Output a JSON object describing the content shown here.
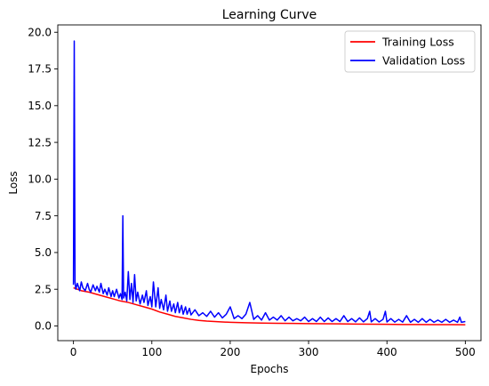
{
  "chart_data": {
    "type": "line",
    "title": "Learning Curve",
    "xlabel": "Epochs",
    "ylabel": "Loss",
    "xlim": [
      -20,
      520
    ],
    "ylim": [
      -1.0,
      20.5
    ],
    "xticks": [
      0,
      100,
      200,
      300,
      400,
      500
    ],
    "xtick_labels": [
      "0",
      "100",
      "200",
      "300",
      "400",
      "500"
    ],
    "yticks": [
      0.0,
      2.5,
      5.0,
      7.5,
      10.0,
      12.5,
      15.0,
      17.5,
      20.0
    ],
    "ytick_labels": [
      "0.0",
      "2.5",
      "5.0",
      "7.5",
      "10.0",
      "12.5",
      "15.0",
      "17.5",
      "20.0"
    ],
    "grid": false,
    "legend_position": "top-right",
    "series": [
      {
        "name": "Training Loss",
        "color": "#ff0000",
        "x": [
          0,
          10,
          20,
          30,
          40,
          50,
          60,
          70,
          80,
          90,
          100,
          110,
          120,
          130,
          140,
          150,
          160,
          170,
          180,
          190,
          200,
          220,
          240,
          260,
          280,
          300,
          320,
          340,
          360,
          380,
          400,
          420,
          440,
          460,
          480,
          500
        ],
        "y": [
          2.6,
          2.4,
          2.3,
          2.15,
          2.0,
          1.85,
          1.7,
          1.6,
          1.45,
          1.3,
          1.15,
          0.95,
          0.8,
          0.65,
          0.55,
          0.45,
          0.38,
          0.33,
          0.3,
          0.27,
          0.25,
          0.22,
          0.2,
          0.18,
          0.17,
          0.16,
          0.15,
          0.14,
          0.13,
          0.12,
          0.11,
          0.1,
          0.1,
          0.09,
          0.09,
          0.08
        ]
      },
      {
        "name": "Validation Loss",
        "color": "#0000ff",
        "x": [
          0,
          1,
          2,
          3,
          5,
          8,
          10,
          12,
          15,
          18,
          20,
          22,
          25,
          28,
          30,
          33,
          35,
          38,
          40,
          43,
          45,
          48,
          50,
          52,
          55,
          58,
          60,
          62,
          63,
          64,
          66,
          68,
          70,
          72,
          74,
          76,
          78,
          80,
          82,
          85,
          88,
          90,
          93,
          95,
          98,
          100,
          102,
          105,
          108,
          110,
          112,
          115,
          118,
          120,
          123,
          125,
          128,
          130,
          133,
          135,
          138,
          140,
          143,
          145,
          148,
          150,
          155,
          160,
          165,
          170,
          175,
          180,
          185,
          190,
          195,
          200,
          205,
          210,
          215,
          220,
          225,
          230,
          235,
          240,
          245,
          250,
          255,
          260,
          265,
          270,
          275,
          280,
          285,
          290,
          295,
          300,
          305,
          310,
          315,
          320,
          325,
          330,
          335,
          340,
          345,
          350,
          355,
          360,
          365,
          370,
          375,
          378,
          380,
          385,
          390,
          395,
          398,
          400,
          405,
          410,
          415,
          420,
          425,
          430,
          435,
          440,
          445,
          450,
          455,
          460,
          465,
          470,
          475,
          480,
          485,
          490,
          493,
          495,
          500
        ],
        "y": [
          2.8,
          19.4,
          3.0,
          2.5,
          2.9,
          2.4,
          3.0,
          2.6,
          2.4,
          2.9,
          2.5,
          2.3,
          2.8,
          2.4,
          2.7,
          2.3,
          2.9,
          2.2,
          2.5,
          2.1,
          2.6,
          2.0,
          2.4,
          2.0,
          2.5,
          1.9,
          2.2,
          1.8,
          7.5,
          1.9,
          2.3,
          1.7,
          3.7,
          1.8,
          2.9,
          1.6,
          3.5,
          1.7,
          2.3,
          1.5,
          2.1,
          1.6,
          2.4,
          1.4,
          2.0,
          1.3,
          3.0,
          1.3,
          2.6,
          1.2,
          1.8,
          1.1,
          2.1,
          1.0,
          1.7,
          1.0,
          1.5,
          0.9,
          1.6,
          0.9,
          1.4,
          0.8,
          1.3,
          0.8,
          1.2,
          0.75,
          1.1,
          0.7,
          0.9,
          0.65,
          1.0,
          0.6,
          0.9,
          0.55,
          0.8,
          1.3,
          0.5,
          0.7,
          0.5,
          0.8,
          1.6,
          0.45,
          0.7,
          0.4,
          0.9,
          0.4,
          0.6,
          0.4,
          0.7,
          0.35,
          0.6,
          0.35,
          0.5,
          0.35,
          0.6,
          0.3,
          0.5,
          0.3,
          0.6,
          0.3,
          0.55,
          0.3,
          0.5,
          0.3,
          0.7,
          0.3,
          0.5,
          0.28,
          0.55,
          0.28,
          0.5,
          1.0,
          0.28,
          0.5,
          0.27,
          0.45,
          1.0,
          0.27,
          0.5,
          0.26,
          0.45,
          0.26,
          0.7,
          0.25,
          0.45,
          0.25,
          0.5,
          0.25,
          0.45,
          0.25,
          0.4,
          0.25,
          0.45,
          0.25,
          0.4,
          0.25,
          0.6,
          0.25,
          0.3
        ]
      }
    ]
  }
}
